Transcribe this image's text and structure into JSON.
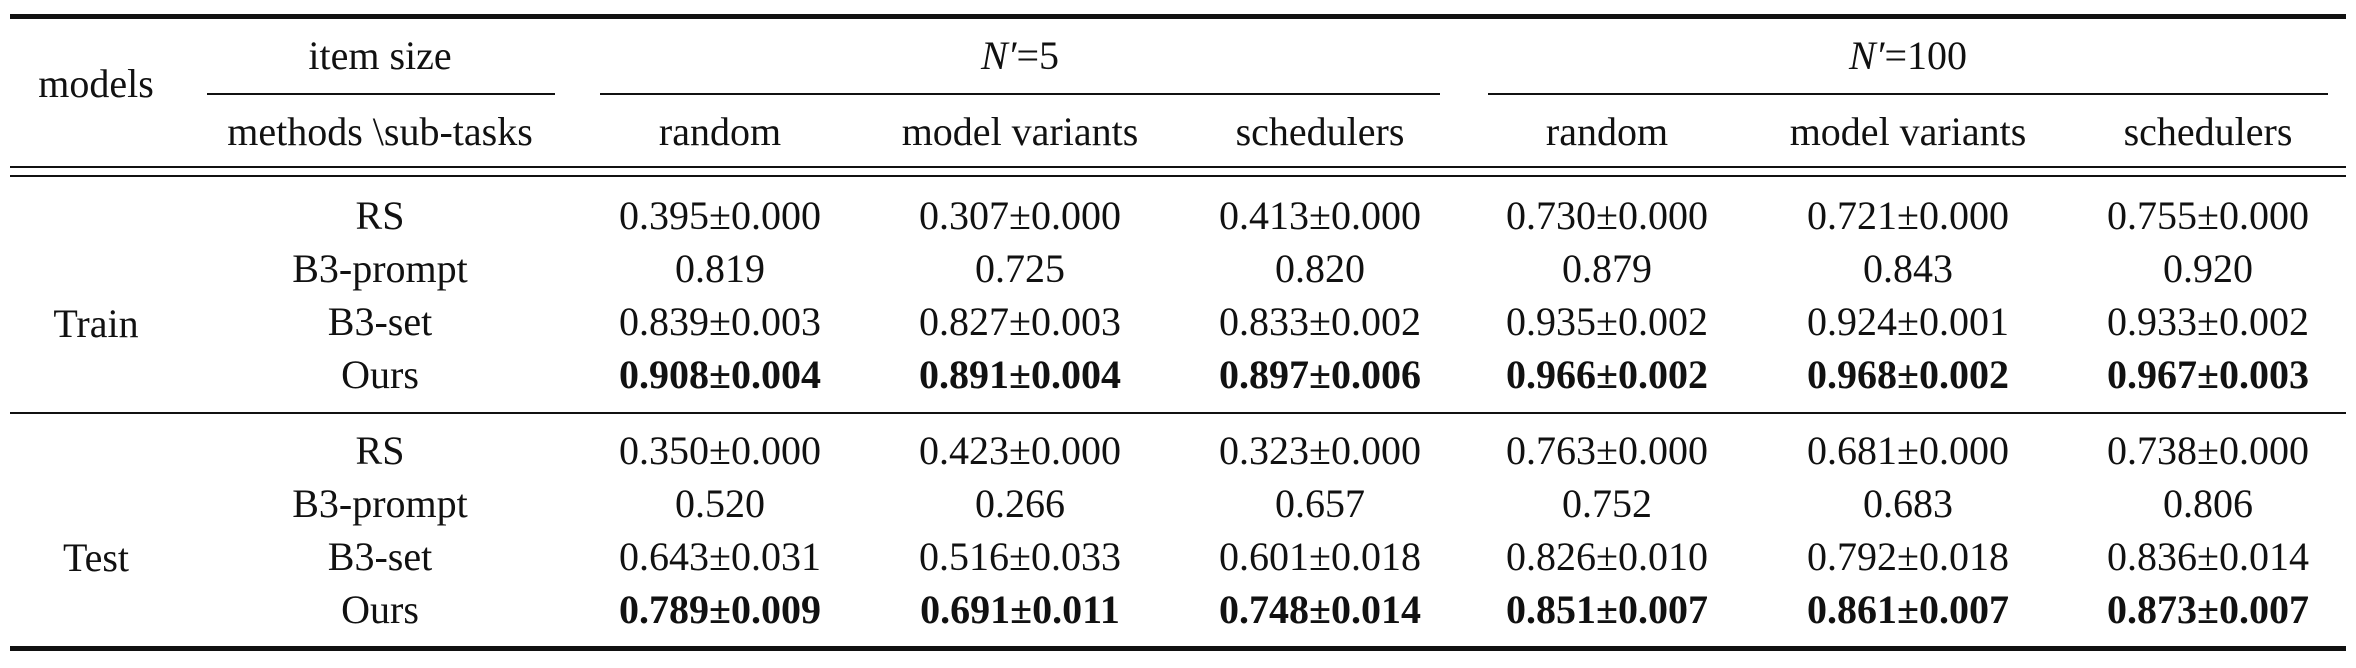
{
  "header": {
    "models_label": "models",
    "item_size_label": "item size",
    "methods_label": "methods \\sub-tasks",
    "groups": [
      {
        "label_var": "N′",
        "label_val": "=5"
      },
      {
        "label_var": "N′",
        "label_val": "=100"
      }
    ],
    "subtasks": [
      "random",
      "model variants",
      "schedulers",
      "random",
      "model variants",
      "schedulers"
    ]
  },
  "sections": [
    {
      "label": "Train",
      "rows": [
        {
          "method": "RS",
          "bold": false,
          "values": [
            "0.395±0.000",
            "0.307±0.000",
            "0.413±0.000",
            "0.730±0.000",
            "0.721±0.000",
            "0.755±0.000"
          ]
        },
        {
          "method": "B3-prompt",
          "bold": false,
          "values": [
            "0.819",
            "0.725",
            "0.820",
            "0.879",
            "0.843",
            "0.920"
          ]
        },
        {
          "method": "B3-set",
          "bold": false,
          "values": [
            "0.839±0.003",
            "0.827±0.003",
            "0.833±0.002",
            "0.935±0.002",
            "0.924±0.001",
            "0.933±0.002"
          ]
        },
        {
          "method": "Ours",
          "bold": true,
          "values": [
            "0.908±0.004",
            "0.891±0.004",
            "0.897±0.006",
            "0.966±0.002",
            "0.968±0.002",
            "0.967±0.003"
          ]
        }
      ]
    },
    {
      "label": "Test",
      "rows": [
        {
          "method": "RS",
          "bold": false,
          "values": [
            "0.350±0.000",
            "0.423±0.000",
            "0.323±0.000",
            "0.763±0.000",
            "0.681±0.000",
            "0.738±0.000"
          ]
        },
        {
          "method": "B3-prompt",
          "bold": false,
          "values": [
            "0.520",
            "0.266",
            "0.657",
            "0.752",
            "0.683",
            "0.806"
          ]
        },
        {
          "method": "B3-set",
          "bold": false,
          "values": [
            "0.643±0.031",
            "0.516±0.033",
            "0.601±0.018",
            "0.826±0.010",
            "0.792±0.018",
            "0.836±0.014"
          ]
        },
        {
          "method": "Ours",
          "bold": true,
          "values": [
            "0.789±0.009",
            "0.691±0.011",
            "0.748±0.014",
            "0.851±0.007",
            "0.861±0.007",
            "0.873±0.007"
          ]
        }
      ]
    }
  ]
}
